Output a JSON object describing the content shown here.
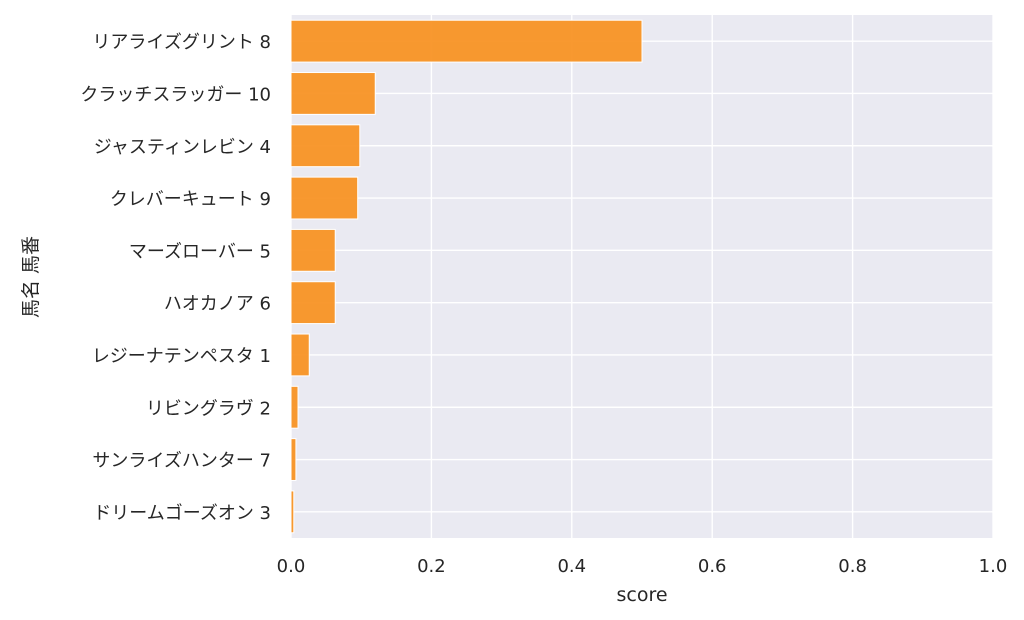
{
  "chart_data": {
    "type": "bar",
    "orientation": "horizontal",
    "categories": [
      "リアライズグリント 8",
      "クラッチスラッガー 10",
      "ジャスティンレビン 4",
      "クレバーキュート 9",
      "マーズローバー 5",
      "ハオカノア 6",
      "レジーナテンペスタ 1",
      "リビングラヴ 2",
      "サンライズハンター 7",
      "ドリームゴーズオン 3"
    ],
    "values": [
      0.5,
      0.12,
      0.098,
      0.095,
      0.063,
      0.063,
      0.026,
      0.01,
      0.007,
      0.004
    ],
    "xlabel": "score",
    "ylabel": "馬名 馬番",
    "xlim": [
      0,
      1.0
    ],
    "xticks": [
      "0.0",
      "0.2",
      "0.4",
      "0.6",
      "0.8",
      "1.0"
    ],
    "grid": true,
    "bar_color": "#f7901e",
    "background_color": "#eaeaf2"
  }
}
